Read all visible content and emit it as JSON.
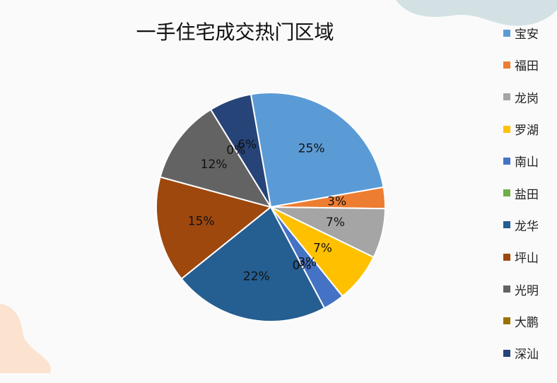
{
  "chart_data": {
    "type": "pie",
    "title": "一手住宅成交热门区域",
    "categories": [
      "宝安",
      "福田",
      "龙岗",
      "罗湖",
      "南山",
      "盐田",
      "龙华",
      "坪山",
      "光明",
      "大鹏",
      "深汕"
    ],
    "values": [
      25,
      3,
      7,
      7,
      3,
      0,
      22,
      15,
      12,
      0,
      6
    ],
    "value_labels": [
      "25%",
      "3%",
      "7%",
      "7%",
      "3%",
      "0%",
      "22%",
      "15%",
      "12%",
      "0%",
      "6%"
    ],
    "colors": [
      "#5b9bd5",
      "#ed7d31",
      "#a5a5a5",
      "#ffc000",
      "#4472c4",
      "#70ad47",
      "#255e91",
      "#9e480e",
      "#636363",
      "#997300",
      "#264478"
    ],
    "legend_position": "right",
    "start_angle_deg": -10
  }
}
